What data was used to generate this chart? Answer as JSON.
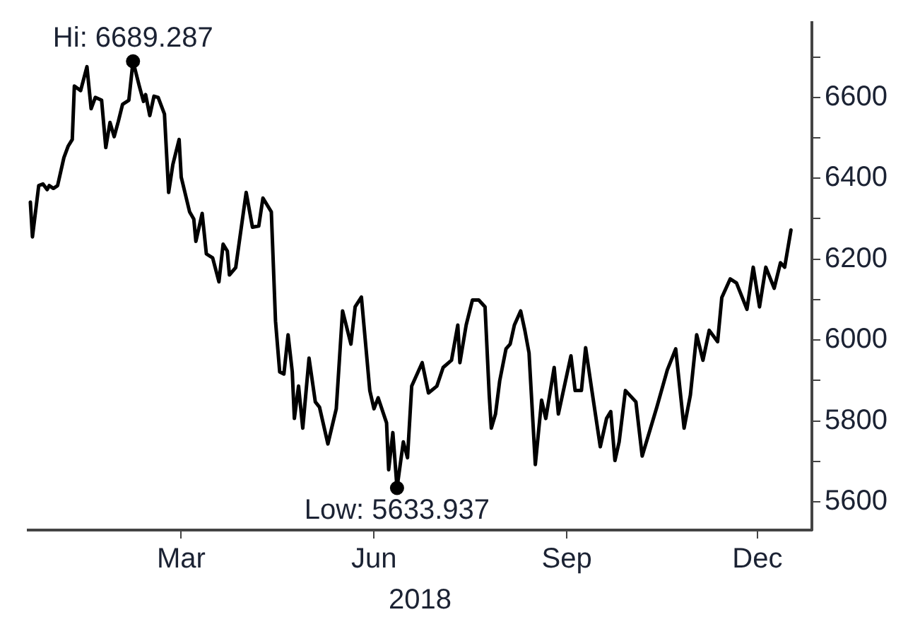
{
  "chart_data": {
    "type": "line",
    "xlabel": "2018",
    "x": [
      "2018-01-02",
      "2018-01-03",
      "2018-01-06",
      "2018-01-08",
      "2018-01-10",
      "2018-01-11",
      "2018-01-13",
      "2018-01-15",
      "2018-01-18",
      "2018-01-20",
      "2018-01-22",
      "2018-01-23",
      "2018-01-26",
      "2018-01-29",
      "2018-01-31",
      "2018-02-02",
      "2018-02-05",
      "2018-02-07",
      "2018-02-09",
      "2018-02-11",
      "2018-02-13",
      "2018-02-15",
      "2018-02-18",
      "2018-02-20",
      "2018-02-23",
      "2018-02-25",
      "2018-02-26",
      "2018-02-28",
      "2018-03-02",
      "2018-03-04",
      "2018-03-07",
      "2018-03-09",
      "2018-03-11",
      "2018-03-14",
      "2018-03-15",
      "2018-03-19",
      "2018-03-21",
      "2018-03-22",
      "2018-03-25",
      "2018-03-27",
      "2018-03-30",
      "2018-04-02",
      "2018-04-04",
      "2018-04-06",
      "2018-04-07",
      "2018-04-10",
      "2018-04-15",
      "2018-04-18",
      "2018-04-21",
      "2018-04-23",
      "2018-04-27",
      "2018-04-29",
      "2018-05-01",
      "2018-05-03",
      "2018-05-05",
      "2018-05-07",
      "2018-05-08",
      "2018-05-10",
      "2018-05-12",
      "2018-05-15",
      "2018-05-18",
      "2018-05-20",
      "2018-05-24",
      "2018-05-28",
      "2018-05-31",
      "2018-06-04",
      "2018-06-06",
      "2018-06-09",
      "2018-06-13",
      "2018-06-15",
      "2018-06-17",
      "2018-06-21",
      "2018-06-22",
      "2018-06-24",
      "2018-06-26",
      "2018-06-29",
      "2018-07-01",
      "2018-07-03",
      "2018-07-08",
      "2018-07-11",
      "2018-07-15",
      "2018-07-18",
      "2018-07-22",
      "2018-07-25",
      "2018-07-26",
      "2018-07-29",
      "2018-08-01",
      "2018-08-04",
      "2018-08-07",
      "2018-08-09",
      "2018-08-10",
      "2018-08-12",
      "2018-08-14",
      "2018-08-17",
      "2018-08-19",
      "2018-08-21",
      "2018-08-24",
      "2018-08-26",
      "2018-08-28",
      "2018-08-31",
      "2018-09-03",
      "2018-09-05",
      "2018-09-09",
      "2018-09-11",
      "2018-09-17",
      "2018-09-19",
      "2018-09-22",
      "2018-09-24",
      "2018-09-27",
      "2018-10-01",
      "2018-10-04",
      "2018-10-06",
      "2018-10-08",
      "2018-10-10",
      "2018-10-13",
      "2018-10-18",
      "2018-10-21",
      "2018-10-25",
      "2018-10-28",
      "2018-11-02",
      "2018-11-06",
      "2018-11-10",
      "2018-11-13",
      "2018-11-16",
      "2018-11-19",
      "2018-11-22",
      "2018-11-26",
      "2018-11-28",
      "2018-12-02",
      "2018-12-05",
      "2018-12-10",
      "2018-12-13",
      "2018-12-16",
      "2018-12-19",
      "2018-12-23",
      "2018-12-26",
      "2018-12-28",
      "2018-12-31"
    ],
    "series": [
      {
        "color": "#000000",
        "values": [
          6341,
          6255,
          6382,
          6386,
          6372,
          6382,
          6375,
          6382,
          6451,
          6479,
          6496,
          6628,
          6617,
          6676,
          6572,
          6600,
          6593,
          6476,
          6538,
          6503,
          6541,
          6583,
          6593,
          6689.287,
          6628,
          6590,
          6607,
          6555,
          6603,
          6600,
          6559,
          6365,
          6434,
          6496,
          6403,
          6317,
          6299,
          6244,
          6313,
          6213,
          6203,
          6144,
          6237,
          6220,
          6161,
          6179,
          6365,
          6279,
          6282,
          6351,
          6317,
          6047,
          5921,
          5916,
          6013,
          5921,
          5806,
          5886,
          5782,
          5955,
          5847,
          5834,
          5743,
          5830,
          6072,
          5990,
          6082,
          6106,
          5875,
          5830,
          5857,
          5795,
          5679,
          5771,
          5633.937,
          5748,
          5709,
          5886,
          5944,
          5869,
          5886,
          5932,
          5950,
          6037,
          5944,
          6037,
          6099,
          6099,
          6082,
          5864,
          5782,
          5817,
          5899,
          5978,
          5990,
          6037,
          6072,
          6024,
          5968,
          5692,
          5851,
          5806,
          5932,
          5817,
          5961,
          5875,
          5875,
          5981,
          5875,
          5736,
          5806,
          5823,
          5702,
          5748,
          5875,
          5847,
          5713,
          5782,
          5834,
          5926,
          5978,
          5782,
          5864,
          6013,
          5950,
          6024,
          5996,
          6105,
          6151,
          6141,
          6076,
          6180,
          6082,
          6180,
          6128,
          6191,
          6180,
          6272
        ]
      }
    ],
    "xlim": [
      "2018-01-01",
      "2019-01-10"
    ],
    "xticks": [
      {
        "value": "2018-03-15",
        "label": "Mar"
      },
      {
        "value": "2018-06-15",
        "label": "Jun"
      },
      {
        "value": "2018-09-15",
        "label": "Sep"
      },
      {
        "value": "2018-12-15",
        "label": "Dec"
      }
    ],
    "ylim": [
      5530,
      6785
    ],
    "yticks": [
      5600,
      {
        "value": 5700,
        "label": null
      },
      5800,
      {
        "value": 5900,
        "label": null
      },
      6000,
      {
        "value": 6100,
        "label": null
      },
      6200,
      {
        "value": 6300,
        "label": null
      },
      6400,
      {
        "value": 6500,
        "label": null
      },
      6600,
      {
        "value": 6700,
        "label": null
      }
    ],
    "annotations": [
      {
        "text": "Hi: 6689.287",
        "x": "2018-02-20",
        "y": 6689.287
      },
      {
        "text": "Low: 5633.937",
        "x": "2018-06-26",
        "y": 5633.937
      }
    ],
    "grid": false,
    "legend": false,
    "marker": "none",
    "line_style": "solid"
  }
}
